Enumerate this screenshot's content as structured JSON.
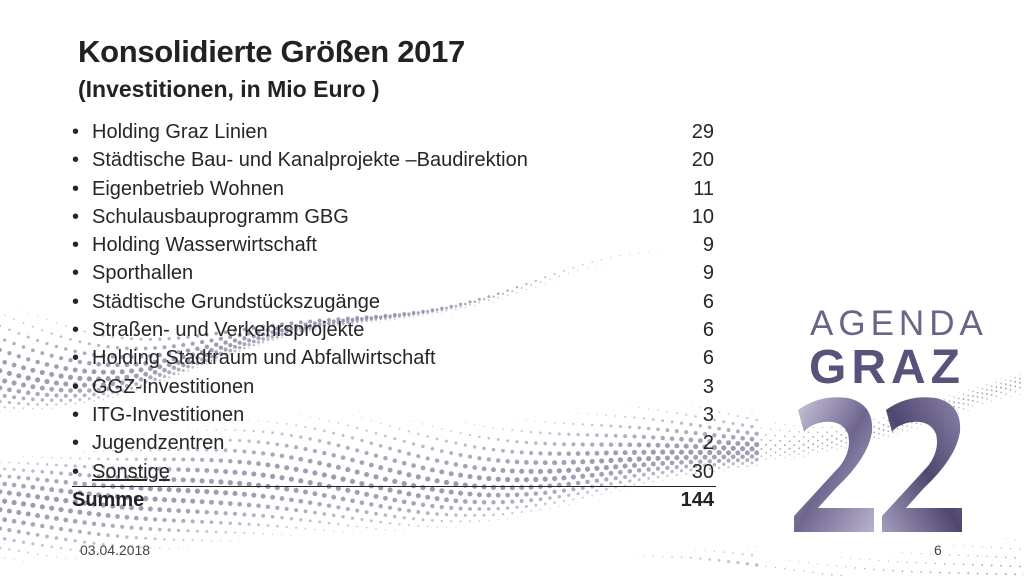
{
  "slide": {
    "title": "Konsolidierte Größen 2017",
    "subtitle": "(Investitionen, in Mio Euro )",
    "bullet_symbol": "•",
    "items": [
      {
        "label": "Holding Graz Linien",
        "value": "29"
      },
      {
        "label": "Städtische Bau- und Kanalprojekte –Baudirektion",
        "value": "20"
      },
      {
        "label": "Eigenbetrieb Wohnen",
        "value": "11"
      },
      {
        "label": "Schulausbauprogramm GBG",
        "value": "10"
      },
      {
        "label": "Holding Wasserwirtschaft",
        "value": "9"
      },
      {
        "label": "Sporthallen",
        "value": "9"
      },
      {
        "label": "Städtische Grundstückszugänge",
        "value": "6"
      },
      {
        "label": "Straßen- und Verkehrsprojekte",
        "value": "6"
      },
      {
        "label": "Holding Stadtraum und Abfallwirtschaft",
        "value": "6"
      },
      {
        "label": "GGZ-Investitionen",
        "value": "3"
      },
      {
        "label": "ITG-Investitionen",
        "value": "3"
      },
      {
        "label": "Jugendzentren",
        "value": "2"
      },
      {
        "label": "Sonstige",
        "value": "30"
      }
    ],
    "total": {
      "label": "Summe",
      "value": "144"
    }
  },
  "footer": {
    "date": "03.04.2018",
    "page_number": "6"
  },
  "logo": {
    "line1": "AGENDA",
    "line2": "GRAZ",
    "number": "22"
  },
  "colors": {
    "logo_purple": "#5a527a",
    "logo_light": "#6c6487",
    "dot_pattern": "#8a809f"
  }
}
